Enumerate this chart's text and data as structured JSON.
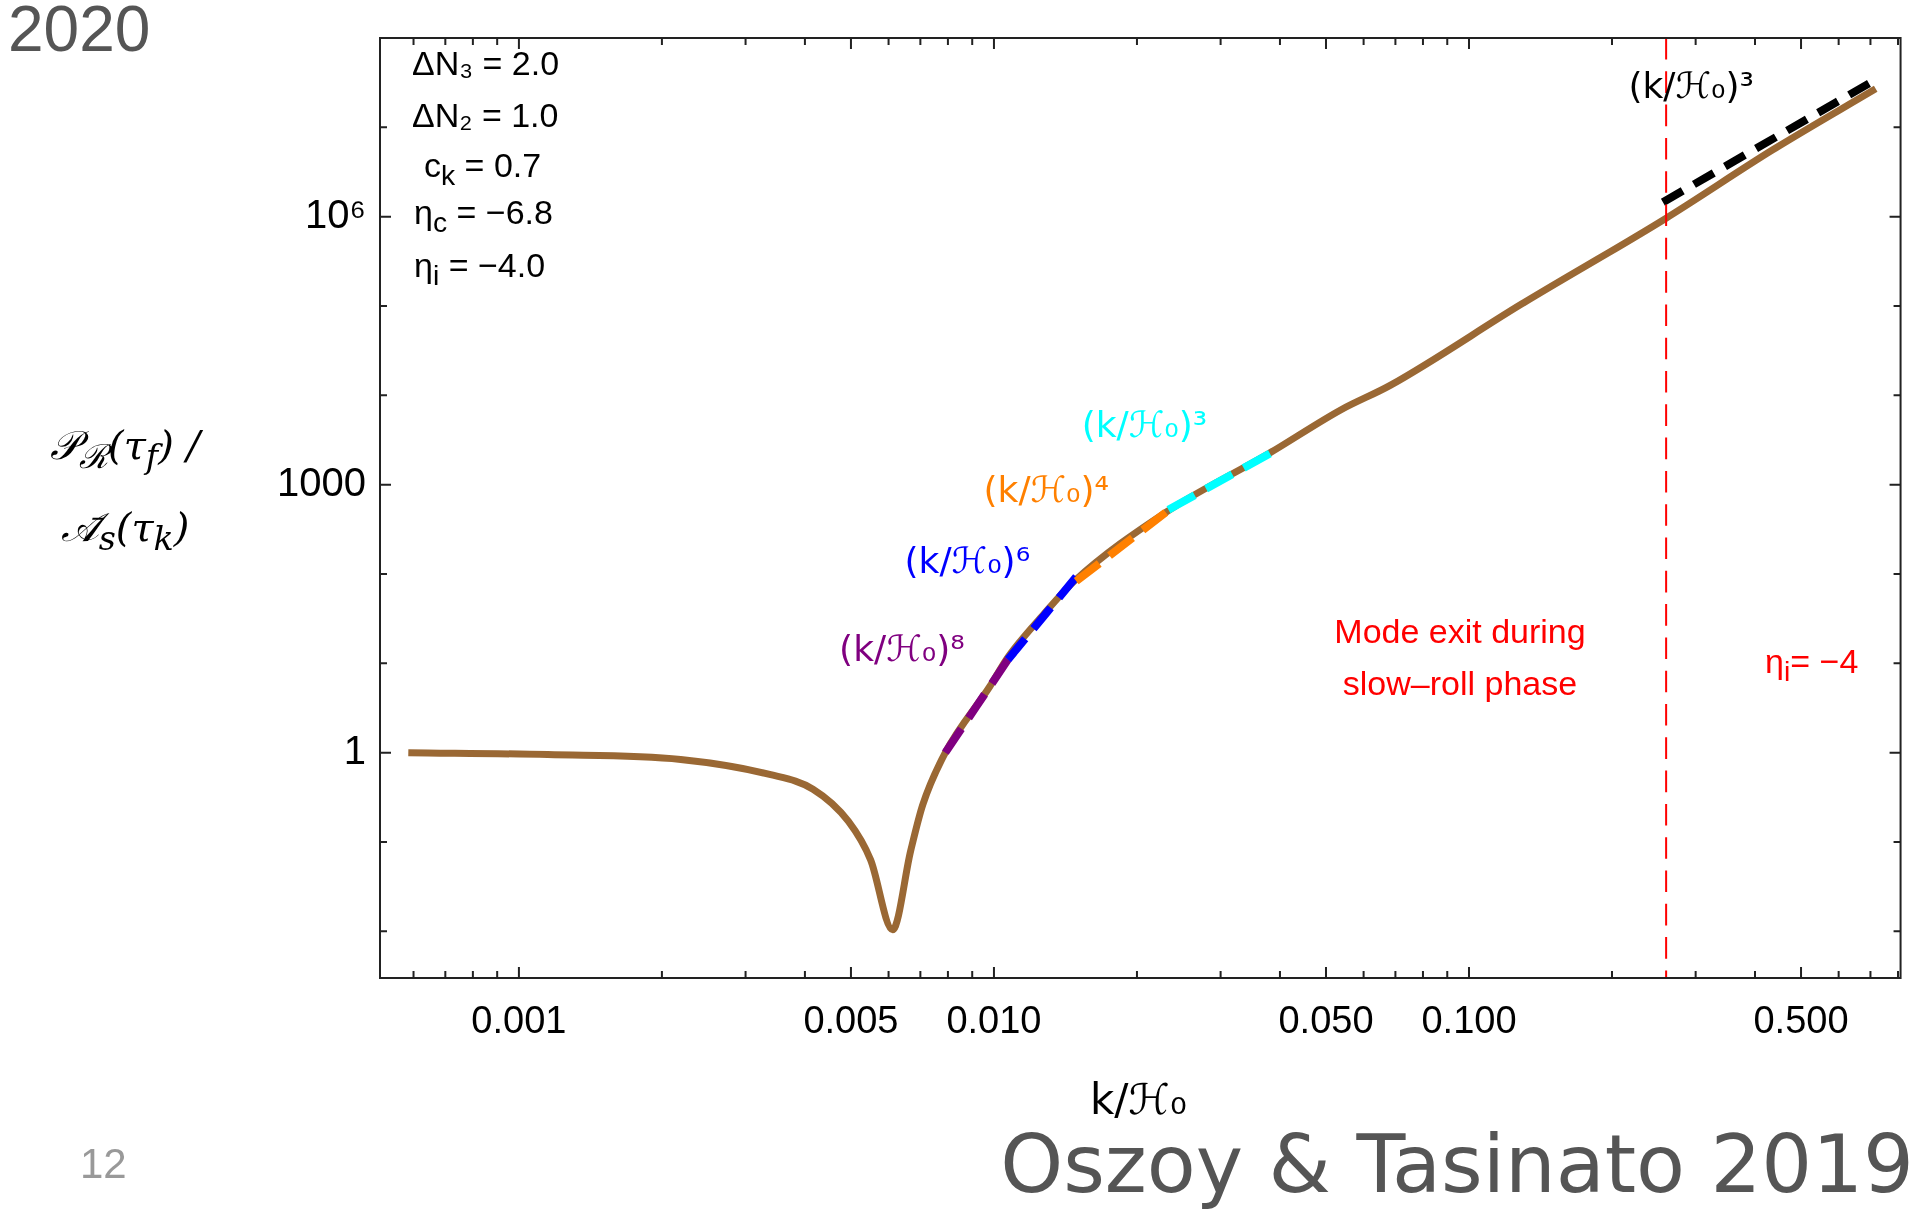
{
  "chart_data": {
    "type": "line",
    "log": "xy",
    "marker": "none",
    "grid": false,
    "legend": false,
    "xlabel": "k/ℋ₀",
    "ylabel": "𝒫$_{ℛ}$(τ$_{f}$) / 𝒜̄$_{s}$(τ$_{k}$)",
    "xlim": [
      0.00051,
      0.81
    ],
    "ylim": [
      0.003,
      100000000
    ],
    "xticks": [
      {
        "value": 0.0006,
        "label": null
      },
      {
        "value": 0.0007,
        "label": null
      },
      {
        "value": 0.0008,
        "label": null
      },
      {
        "value": 0.0009,
        "label": null
      },
      {
        "value": 0.001,
        "label": "0.001"
      },
      {
        "value": 0.002,
        "label": null
      },
      {
        "value": 0.003,
        "label": null
      },
      {
        "value": 0.004,
        "label": null
      },
      {
        "value": 0.005,
        "label": "0.005"
      },
      {
        "value": 0.006,
        "label": null
      },
      {
        "value": 0.007,
        "label": null
      },
      {
        "value": 0.008,
        "label": null
      },
      {
        "value": 0.009,
        "label": null
      },
      {
        "value": 0.01,
        "label": "0.010"
      },
      {
        "value": 0.02,
        "label": null
      },
      {
        "value": 0.03,
        "label": null
      },
      {
        "value": 0.04,
        "label": null
      },
      {
        "value": 0.05,
        "label": "0.050"
      },
      {
        "value": 0.06,
        "label": null
      },
      {
        "value": 0.07,
        "label": null
      },
      {
        "value": 0.08,
        "label": null
      },
      {
        "value": 0.09,
        "label": null
      },
      {
        "value": 0.1,
        "label": "0.100"
      },
      {
        "value": 0.2,
        "label": null
      },
      {
        "value": 0.3,
        "label": null
      },
      {
        "value": 0.4,
        "label": null
      },
      {
        "value": 0.5,
        "label": "0.500"
      },
      {
        "value": 0.6,
        "label": null
      },
      {
        "value": 0.7,
        "label": null
      },
      {
        "value": 0.8,
        "label": null
      }
    ],
    "yticks": [
      {
        "value": 0.01,
        "label": null
      },
      {
        "value": 0.1,
        "label": null
      },
      1,
      {
        "value": 10,
        "label": null
      },
      {
        "value": 100,
        "label": null
      },
      1000,
      {
        "value": 10000,
        "label": null
      },
      {
        "value": 100000,
        "label": null
      },
      {
        "value": 1000000,
        "label": "10⁶"
      },
      {
        "value": 10000000,
        "label": null
      }
    ],
    "series": [
      {
        "color": "#9a6834",
        "line_style": "solid",
        "x": [
          0.000585,
          0.00115,
          0.00219,
          0.00337,
          0.00416,
          0.00494,
          0.0055,
          0.00612,
          0.00668,
          0.00708,
          0.0079,
          0.0098,
          0.0107,
          0.0127,
          0.01475,
          0.023,
          0.0379,
          0.0538,
          0.0684,
          0.129,
          0.259,
          0.436,
          0.718
        ],
        "values": [
          1.0,
          0.95,
          0.84,
          0.57,
          0.39,
          0.17,
          0.063,
          0.0104,
          0.08,
          0.26,
          1.0,
          5.5,
          11.7,
          35,
          83,
          490,
          2230,
          6900,
          13000,
          105000,
          950000,
          5600000,
          27000000
        ]
      },
      {
        "name": "(k/ℋ₀)⁸",
        "color": "#800080",
        "line_style": "dashed",
        "x": [
          0.0079,
          0.0107
        ],
        "values": [
          1.0,
          11
        ]
      },
      {
        "name": "(k/ℋ₀)⁶",
        "color": "#0000ff",
        "line_style": "dashed",
        "x": [
          0.0107,
          0.0149
        ],
        "values": [
          11,
          93
        ]
      },
      {
        "name": "(k/ℋ₀)⁴",
        "color": "#ff8000",
        "line_style": "dashed",
        "x": [
          0.0149,
          0.023
        ],
        "values": [
          83,
          490
        ]
      },
      {
        "name": "(k/ℋ₀)³",
        "color": "#00ffff",
        "line_style": "dashed",
        "x": [
          0.0233,
          0.0381
        ],
        "values": [
          525,
          2230
        ]
      },
      {
        "name": "(k/ℋ₀)³",
        "color": "#000000",
        "line_style": "dashed",
        "x": [
          0.256,
          0.695
        ],
        "values": [
          1450000,
          31000000
        ]
      }
    ],
    "ref_lines": [
      {
        "axis": "x",
        "value": 0.26,
        "color": "#ff0000",
        "line_style": "dashed"
      }
    ],
    "annotations": [
      "2020",
      "ΔN₃ = 2.0",
      "ΔN₂ = 1.0",
      "c$_{k}$ = 0.7",
      "η$_{c}$ = −6.8",
      "η$_{i}$ = −4.0",
      "Mode exit during slow–roll phase",
      "η$_{i}$= −4",
      "12",
      "Oszoy & Tasinato 2019"
    ]
  }
}
